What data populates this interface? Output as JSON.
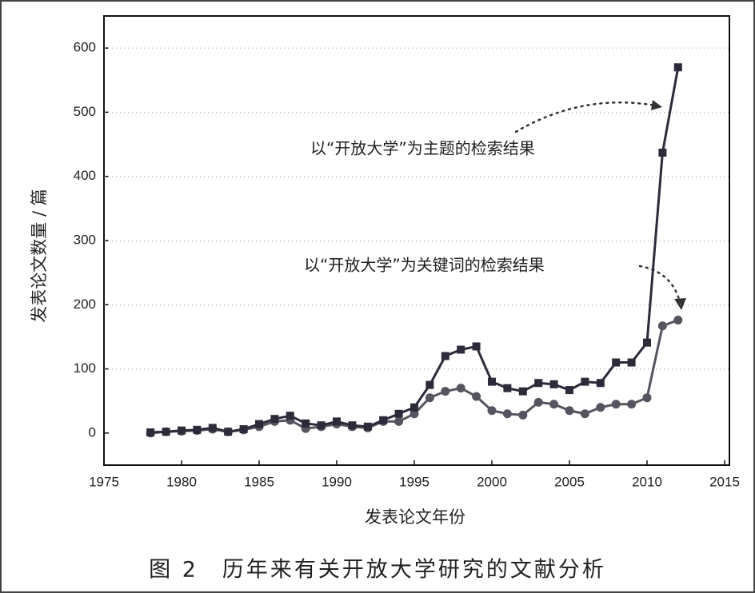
{
  "chart_data": {
    "type": "line",
    "caption": "图 2　历年来有关开放大学研究的文献分析",
    "xlabel": "发表论文年份",
    "ylabel": "发表论文数量 / 篇",
    "x": [
      1978,
      1979,
      1980,
      1981,
      1982,
      1983,
      1984,
      1985,
      1986,
      1987,
      1988,
      1989,
      1990,
      1991,
      1992,
      1993,
      1994,
      1995,
      1996,
      1997,
      1998,
      1999,
      2000,
      2001,
      2002,
      2003,
      2004,
      2005,
      2006,
      2007,
      2008,
      2009,
      2010,
      2011,
      2012
    ],
    "series": [
      {
        "name": "以“开放大学”为主题的检索结果",
        "color": "#2b2b3a",
        "marker": "square",
        "values": [
          1,
          2,
          4,
          5,
          8,
          2,
          6,
          14,
          22,
          27,
          15,
          12,
          18,
          12,
          10,
          20,
          30,
          40,
          75,
          120,
          130,
          135,
          80,
          70,
          65,
          78,
          76,
          67,
          80,
          78,
          110,
          110,
          141,
          437,
          570
        ]
      },
      {
        "name": "以“开放大学”为关键词的检索结果",
        "color": "#555560",
        "marker": "circle",
        "values": [
          0,
          2,
          3,
          4,
          6,
          2,
          5,
          10,
          18,
          20,
          7,
          10,
          14,
          10,
          8,
          18,
          18,
          30,
          55,
          65,
          70,
          57,
          35,
          30,
          28,
          48,
          45,
          35,
          30,
          40,
          45,
          45,
          55,
          167,
          176
        ]
      }
    ],
    "xlim": [
      1975,
      2015
    ],
    "xticks": [
      1975,
      1980,
      1985,
      1990,
      1995,
      2000,
      2005,
      2010,
      2015
    ],
    "ylim": [
      -50,
      650
    ],
    "yticks": [
      0,
      100,
      200,
      300,
      400,
      500,
      600
    ],
    "grid": true
  }
}
